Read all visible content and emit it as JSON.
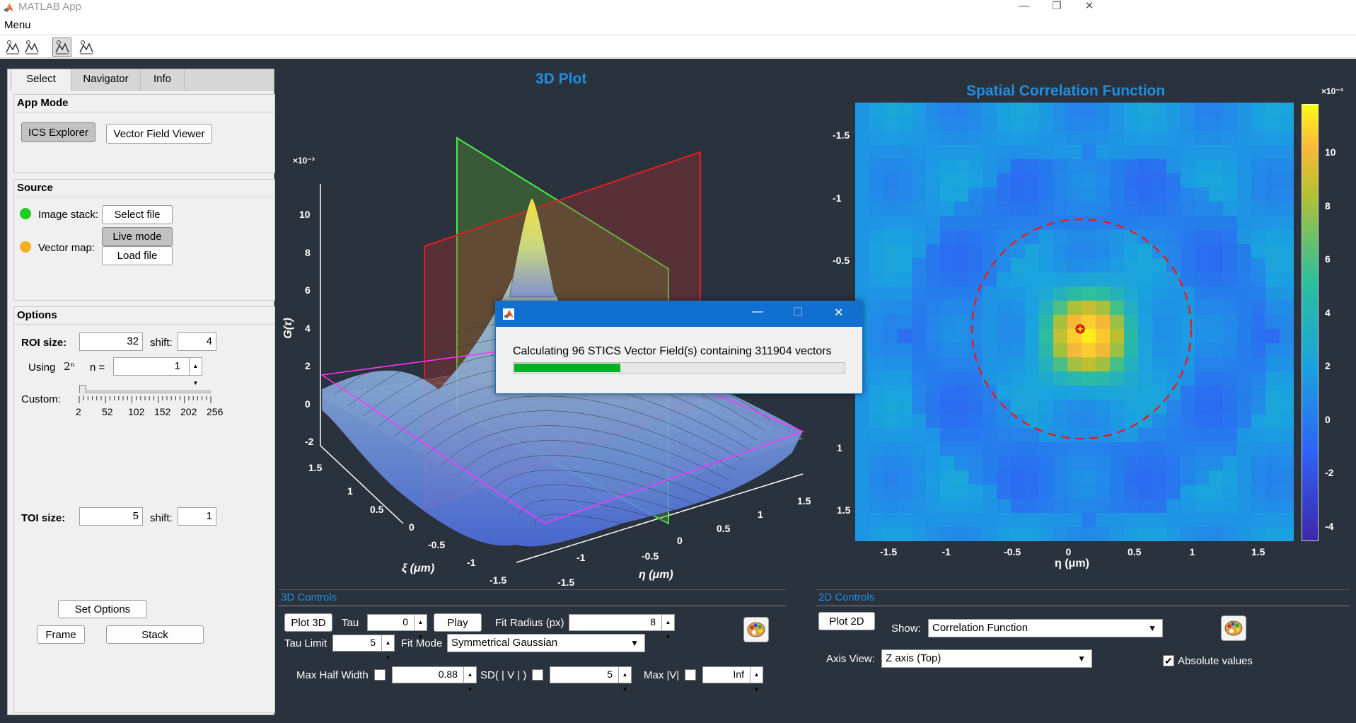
{
  "window": {
    "title": "MATLAB App",
    "minimize": "—",
    "restore": "❐",
    "close": "✕"
  },
  "menubar": {
    "menu_label": "Menu"
  },
  "left_panel": {
    "tabs": [
      {
        "label": "Select"
      },
      {
        "label": "Navigator"
      },
      {
        "label": "Info"
      }
    ],
    "app_mode": {
      "title": "App Mode",
      "ics_explorer": "ICS Explorer",
      "vector_field_viewer": "Vector Field Viewer"
    },
    "source": {
      "title": "Source",
      "image_stack_label": "Image stack:",
      "select_file": "Select file",
      "vector_map_label": "Vector map:",
      "live_mode": "Live mode",
      "load_file": "Load file",
      "image_stack_status_color": "#22cc22",
      "vector_map_status_color": "#f0b020"
    },
    "options": {
      "title": "Options",
      "roi_size_label": "ROI size:",
      "roi_size_value": "32",
      "roi_shift_label": "shift:",
      "roi_shift_value": "4",
      "using_label": "Using",
      "power_label": "2ⁿ",
      "n_label": "n =",
      "n_value": "1",
      "custom_label": "Custom:",
      "slider_ticks": [
        "2",
        "52",
        "102",
        "152",
        "202",
        "256"
      ],
      "slider_value_fraction": 0.0,
      "toi_size_label": "TOI size:",
      "toi_size_value": "5",
      "toi_shift_label": "shift:",
      "toi_shift_value": "1",
      "set_options": "Set Options",
      "frame": "Frame",
      "stack": "Stack"
    }
  },
  "plot3d": {
    "title": "3D Plot",
    "exponent": "×10⁻³",
    "z_label": "G(τ)",
    "z_ticks": [
      "10",
      "8",
      "6",
      "4",
      "2",
      "0",
      "-2"
    ],
    "xi_label": "ξ (μm)",
    "xi_ticks": [
      "1.5",
      "1",
      "0.5",
      "0",
      "-0.5",
      "-1",
      "-1.5"
    ],
    "eta_label": "η (μm)",
    "eta_ticks": [
      "-1.5",
      "-1",
      "-0.5",
      "0",
      "0.5",
      "1",
      "1.5"
    ]
  },
  "plot2d": {
    "title": "Spatial Correlation Function",
    "x_label": "η (μm)",
    "x_ticks": [
      "-1.5",
      "-1",
      "-0.5",
      "0",
      "0.5",
      "1",
      "1.5"
    ],
    "y_ticks": [
      "-1.5",
      "-1",
      "-0.5",
      "1",
      "1.5"
    ],
    "colorbar_exponent": "×10⁻³",
    "colorbar_ticks": [
      "10",
      "8",
      "6",
      "4",
      "2",
      "0",
      "-2",
      "-4"
    ],
    "circle_color": "#e02020"
  },
  "controls3d": {
    "title": "3D Controls",
    "plot3d": "Plot 3D",
    "tau_label": "Tau",
    "tau_value": "0",
    "play": "Play",
    "fit_radius_label": "Fit Radius (px)",
    "fit_radius_value": "8",
    "tau_limit_label": "Tau Limit",
    "tau_limit_value": "5",
    "fit_mode_label": "Fit Mode",
    "fit_mode_value": "Symmetrical Gaussian",
    "max_half_width_label": "Max Half Width",
    "max_half_width_value": "0.88",
    "sd_label": "SD( | V | )",
    "sd_value": "5",
    "max_v_label": "Max |V|",
    "max_v_value": "Inf"
  },
  "controls2d": {
    "title": "2D Controls",
    "plot2d": "Plot 2D",
    "show_label": "Show:",
    "show_value": "Correlation Function",
    "axis_view_label": "Axis View:",
    "axis_view_value": "Z axis (Top)",
    "absolute_values_label": "Absolute values",
    "absolute_values_checked": true
  },
  "dialog": {
    "message": "Calculating 96 STICS Vector Field(s) containing 311904 vectors",
    "progress_fraction": 0.32,
    "minimize": "—",
    "maximize": "☐",
    "close": "✕"
  }
}
